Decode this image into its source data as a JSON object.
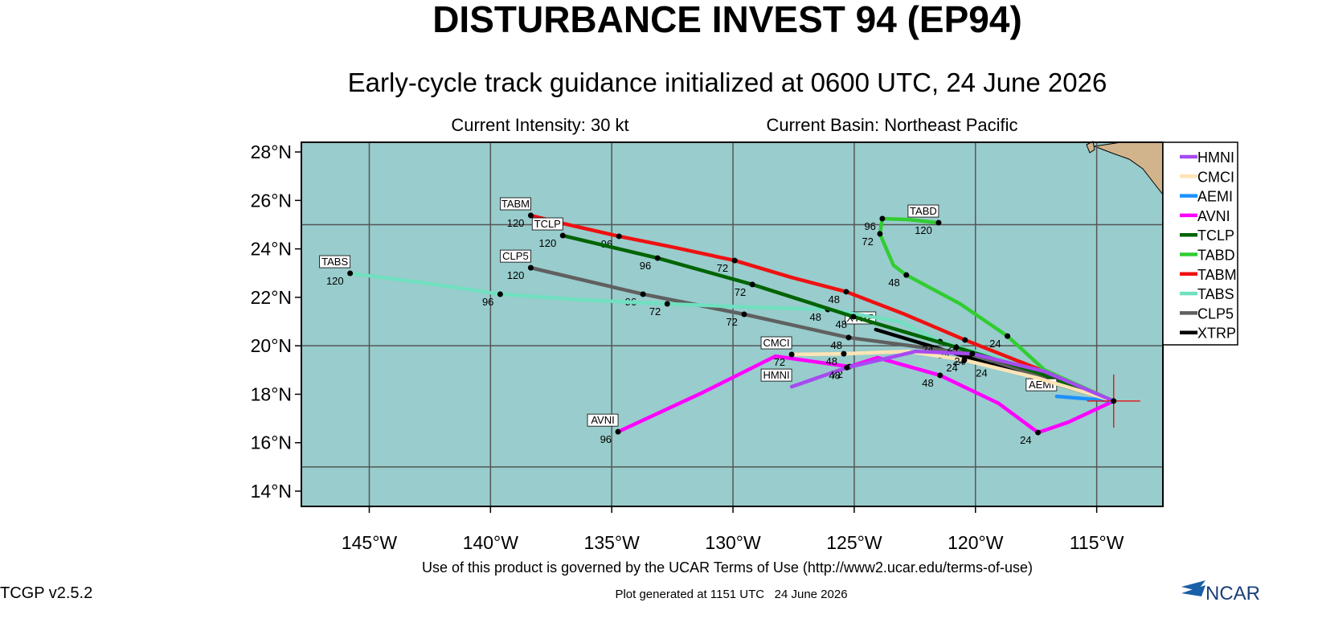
{
  "chart_data": {
    "type": "track",
    "title": "DISTURBANCE INVEST 94 (EP94)",
    "subtitle": "Early-cycle track guidance initialized at 0600 UTC, 24 June 2026",
    "annotations": [
      "Current Intensity: 30 kt",
      "Current Basin: Northeast Pacific"
    ],
    "footer": "Use of this product is governed by the UCAR Terms of Use (http://www2.ucar.edu/terms-of-use)",
    "version": "TCGP v2.5.2",
    "generated": "Plot generated at 1151 UTC   24 June 2026",
    "logo": "NCAR",
    "xlim": [
      -147.8,
      -112.27
    ],
    "ylim": [
      13.37,
      28.4
    ],
    "xticks": [
      {
        "value": -145,
        "label": "145°W"
      },
      {
        "value": -140,
        "label": "140°W"
      },
      {
        "value": -135,
        "label": "135°W"
      },
      {
        "value": -130,
        "label": "130°W"
      },
      {
        "value": -125,
        "label": "125°W"
      },
      {
        "value": -120,
        "label": "120°W"
      },
      {
        "value": -115,
        "label": "115°W"
      }
    ],
    "yticks": [
      {
        "value": 14,
        "label": "14°N"
      },
      {
        "value": 16,
        "label": "16°N"
      },
      {
        "value": 18,
        "label": "18°N"
      },
      {
        "value": 20,
        "label": "20°N"
      },
      {
        "value": 22,
        "label": "22°N"
      },
      {
        "value": 24,
        "label": "24°N"
      },
      {
        "value": 26,
        "label": "26°N"
      },
      {
        "value": 28,
        "label": "28°N"
      }
    ],
    "ygrid": [
      15,
      20,
      25
    ],
    "grid": true,
    "legend": "right",
    "series": [
      {
        "name": "HMNI",
        "color": "#a64bf0",
        "x": [
          -114.3,
          -117.15,
          -120.13,
          -122.45,
          -124.27,
          -125.3,
          -127.58
        ],
        "y": [
          17.72,
          18.94,
          19.67,
          19.77,
          19.34,
          19.1,
          18.31
        ],
        "labels": [
          null,
          null,
          24,
          null,
          null,
          48,
          null
        ]
      },
      {
        "name": "CMCI",
        "color": "#ffe4b5",
        "x": [
          -114.3,
          -117.48,
          -120.46,
          -122.78,
          -125.43,
          -127.58
        ],
        "y": [
          17.72,
          18.68,
          19.41,
          19.77,
          19.67,
          19.64
        ],
        "labels": [
          null,
          null,
          24,
          null,
          48,
          72
        ]
      },
      {
        "name": "AEMI",
        "color": "#1e90ff",
        "x": [
          -114.3,
          -116.65
        ],
        "y": [
          17.72,
          17.91
        ],
        "labels": [
          null,
          null
        ]
      },
      {
        "name": "AVNI",
        "color": "#ff00ff",
        "x": [
          -114.3,
          -116.16,
          -117.42,
          -119.04,
          -121.46,
          -124.04,
          -125.2,
          -128.25,
          -131.23,
          -134.74
        ],
        "y": [
          17.72,
          16.85,
          16.42,
          17.62,
          18.78,
          19.51,
          19.14,
          19.57,
          18.08,
          16.45
        ],
        "labels": [
          null,
          null,
          24,
          null,
          48,
          null,
          72,
          null,
          null,
          96
        ]
      },
      {
        "name": "TCLP",
        "color": "#006400",
        "x": [
          -114.3,
          -117.48,
          -120.79,
          -125.03,
          -129.2,
          -133.11,
          -137.02
        ],
        "y": [
          17.72,
          18.91,
          19.94,
          21.2,
          22.53,
          23.62,
          24.55
        ],
        "labels": [
          null,
          null,
          24,
          48,
          72,
          96,
          120
        ]
      },
      {
        "name": "TABD",
        "color": "#32cd32",
        "x": [
          -114.3,
          -117.15,
          -118.68,
          -120.63,
          -122.85,
          -123.38,
          -123.64,
          -123.94,
          -123.84,
          -122.78,
          -121.52
        ],
        "y": [
          17.72,
          19.0,
          20.4,
          21.73,
          22.92,
          23.32,
          23.92,
          24.62,
          25.25,
          25.21,
          25.08
        ],
        "labels": [
          null,
          null,
          24,
          null,
          48,
          null,
          null,
          72,
          96,
          null,
          120
        ]
      },
      {
        "name": "TABM",
        "color": "#ee1111",
        "x": [
          -114.3,
          -117.15,
          -120.43,
          -122.99,
          -125.33,
          -127.58,
          -129.93,
          -132.38,
          -134.7,
          -137.02,
          -138.34
        ],
        "y": [
          17.72,
          18.94,
          20.24,
          21.33,
          22.23,
          22.82,
          23.52,
          24.05,
          24.52,
          25.05,
          25.38
        ],
        "labels": [
          null,
          null,
          24,
          null,
          48,
          null,
          72,
          null,
          96,
          null,
          120
        ]
      },
      {
        "name": "TABS",
        "color": "#70e0c0",
        "x": [
          -114.3,
          -117.15,
          -121.46,
          -123.11,
          -126.09,
          -129.4,
          -132.71,
          -136.29,
          -139.6,
          -142.91,
          -145.79
        ],
        "y": [
          17.72,
          18.94,
          20.17,
          21.0,
          21.5,
          21.6,
          21.73,
          21.9,
          22.13,
          22.62,
          22.99
        ],
        "labels": [
          null,
          null,
          24,
          null,
          48,
          null,
          72,
          null,
          96,
          null,
          120
        ]
      },
      {
        "name": "CLP5",
        "color": "#606060",
        "x": [
          -114.3,
          -117.15,
          -120.2,
          -125.23,
          -129.54,
          -133.71,
          -138.34
        ],
        "y": [
          17.72,
          18.68,
          19.67,
          20.34,
          21.3,
          22.13,
          23.22
        ],
        "labels": [
          null,
          null,
          24,
          48,
          72,
          96,
          120
        ]
      },
      {
        "name": "XTRP",
        "color": "#000000",
        "x": [
          -114.3,
          -119.24,
          -124.11
        ],
        "y": [
          17.72,
          19.2,
          20.67
        ],
        "labels": [
          null,
          24,
          null
        ]
      }
    ]
  }
}
